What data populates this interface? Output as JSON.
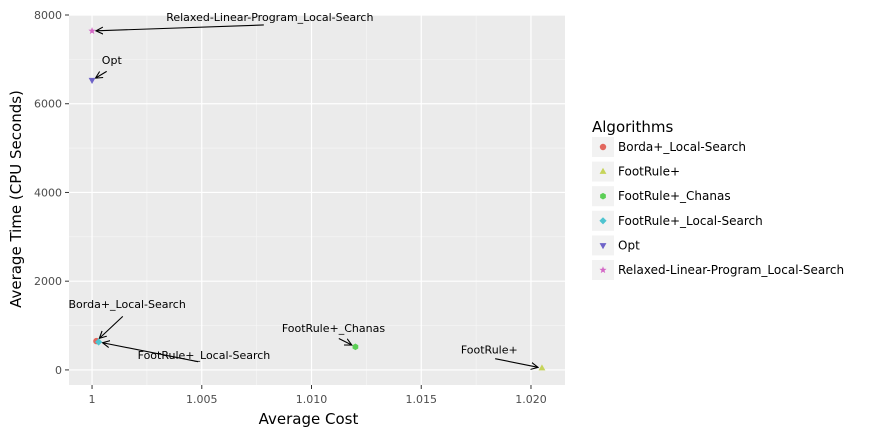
{
  "chart_data": {
    "type": "scatter",
    "title": "",
    "xlabel": "Average Cost",
    "ylabel": "Average Time (CPU Seconds)",
    "xlim": [
      0.99895,
      1.02155
    ],
    "ylim": [
      -340,
      8000
    ],
    "x_ticks": [
      {
        "value": 1.0,
        "label": "1"
      },
      {
        "value": 1.005,
        "label": "1.005"
      },
      {
        "value": 1.01,
        "label": "1.010"
      },
      {
        "value": 1.015,
        "label": "1.015"
      },
      {
        "value": 1.02,
        "label": "1.020"
      }
    ],
    "y_ticks": [
      {
        "value": 0,
        "label": "0"
      },
      {
        "value": 2000,
        "label": "2000"
      },
      {
        "value": 4000,
        "label": "4000"
      },
      {
        "value": 6000,
        "label": "6000"
      },
      {
        "value": 8000,
        "label": "8000"
      }
    ],
    "grid": true,
    "legend_title": "Algorithms",
    "legend_position": "right",
    "series": [
      {
        "name": "Borda+_Local-Search",
        "color": "#e2675e",
        "marker": "circle",
        "x": 1.0002,
        "y": 650
      },
      {
        "name": "FootRule+",
        "color": "#c6d45a",
        "marker": "triangle-up",
        "x": 1.0205,
        "y": 40
      },
      {
        "name": "FootRule+_Chanas",
        "color": "#5ccf56",
        "marker": "hexagon",
        "x": 1.012,
        "y": 520
      },
      {
        "name": "FootRule+_Local-Search",
        "color": "#4fc4d0",
        "marker": "diamond",
        "x": 1.0003,
        "y": 630
      },
      {
        "name": "Opt",
        "color": "#6e63c8",
        "marker": "triangle-down",
        "x": 1.0,
        "y": 6530
      },
      {
        "name": "Relaxed-Linear-Program_Local-Search",
        "color": "#d468c6",
        "marker": "star",
        "x": 1.0,
        "y": 7640
      }
    ],
    "annotations": [
      {
        "text": "Relaxed-Linear-Program_Local-Search",
        "text_x": 1.0081,
        "text_y": 7780,
        "target": 5
      },
      {
        "text": "Opt",
        "text_x": 1.0009,
        "text_y": 6800,
        "target": 4
      },
      {
        "text": "Borda+_Local-Search",
        "text_x": 1.0016,
        "text_y": 1300,
        "target": 0
      },
      {
        "text": "FootRule+_Local-Search",
        "text_x": 1.0051,
        "text_y": 160,
        "target": 3
      },
      {
        "text": "FootRule+_Chanas",
        "text_x": 1.011,
        "text_y": 770,
        "target": 2
      },
      {
        "text": "FootRule+",
        "text_x": 1.0181,
        "text_y": 280,
        "target": 1
      }
    ]
  }
}
